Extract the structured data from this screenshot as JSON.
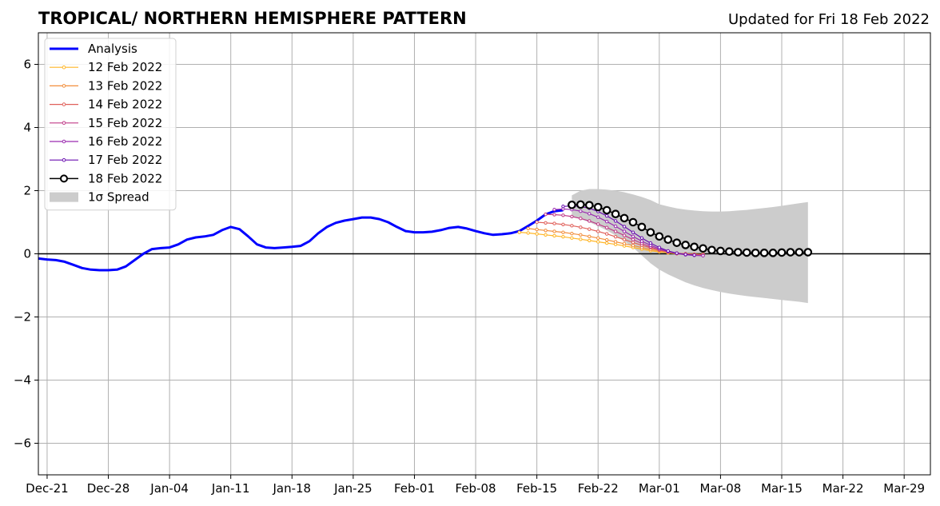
{
  "header": {
    "title": "TROPICAL/ NORTHERN HEMISPHERE PATTERN",
    "updated": "Updated for Fri 18 Feb 2022"
  },
  "chart_data": {
    "type": "line",
    "title": "TROPICAL/ NORTHERN HEMISPHERE PATTERN",
    "xlabel": "",
    "ylabel": "",
    "ylim": [
      -7,
      7
    ],
    "xlim": [
      "2021-12-20",
      "2022-04-01"
    ],
    "grid": true,
    "legend_position": "top-left",
    "x_ticks": [
      {
        "date": "2021-12-21",
        "label": "Dec-21"
      },
      {
        "date": "2021-12-28",
        "label": "Dec-28"
      },
      {
        "date": "2022-01-04",
        "label": "Jan-04"
      },
      {
        "date": "2022-01-11",
        "label": "Jan-11"
      },
      {
        "date": "2022-01-18",
        "label": "Jan-18"
      },
      {
        "date": "2022-01-25",
        "label": "Jan-25"
      },
      {
        "date": "2022-02-01",
        "label": "Feb-01"
      },
      {
        "date": "2022-02-08",
        "label": "Feb-08"
      },
      {
        "date": "2022-02-15",
        "label": "Feb-15"
      },
      {
        "date": "2022-02-22",
        "label": "Feb-22"
      },
      {
        "date": "2022-03-01",
        "label": "Mar-01"
      },
      {
        "date": "2022-03-08",
        "label": "Mar-08"
      },
      {
        "date": "2022-03-15",
        "label": "Mar-15"
      },
      {
        "date": "2022-03-22",
        "label": "Mar-22"
      },
      {
        "date": "2022-03-29",
        "label": "Mar-29"
      }
    ],
    "y_ticks": [
      {
        "value": 6,
        "label": "6"
      },
      {
        "value": 4,
        "label": "4"
      },
      {
        "value": 2,
        "label": "2"
      },
      {
        "value": 0,
        "label": "0"
      },
      {
        "value": -2,
        "label": "−2"
      },
      {
        "value": -4,
        "label": "−4"
      },
      {
        "value": -6,
        "label": "−6"
      }
    ],
    "analysis": {
      "name": "Analysis",
      "color": "#0000ff",
      "start_date": "2021-12-20",
      "values": [
        -0.15,
        -0.18,
        -0.2,
        -0.25,
        -0.35,
        -0.45,
        -0.5,
        -0.52,
        -0.52,
        -0.5,
        -0.4,
        -0.2,
        0.0,
        0.15,
        0.18,
        0.2,
        0.3,
        0.45,
        0.52,
        0.55,
        0.6,
        0.75,
        0.85,
        0.78,
        0.55,
        0.3,
        0.2,
        0.18,
        0.2,
        0.22,
        0.25,
        0.4,
        0.65,
        0.85,
        0.98,
        1.05,
        1.1,
        1.15,
        1.15,
        1.1,
        1.0,
        0.85,
        0.72,
        0.68,
        0.68,
        0.7,
        0.75,
        0.82,
        0.85,
        0.8,
        0.72,
        0.65,
        0.6,
        0.62,
        0.65,
        0.72,
        0.88,
        1.05,
        1.25,
        1.35,
        1.38
      ]
    },
    "forecasts": [
      {
        "name": "12 Feb 2022",
        "color": "#ffb627",
        "start_date": "2022-02-13",
        "values": [
          0.68,
          0.66,
          0.63,
          0.6,
          0.57,
          0.54,
          0.5,
          0.46,
          0.42,
          0.38,
          0.34,
          0.3,
          0.25,
          0.2,
          0.15,
          0.1,
          0.06,
          0.03,
          0.0,
          -0.02,
          -0.03,
          -0.03
        ]
      },
      {
        "name": "13 Feb 2022",
        "color": "#f28e3b",
        "start_date": "2022-02-14",
        "values": [
          0.8,
          0.77,
          0.74,
          0.71,
          0.68,
          0.64,
          0.6,
          0.55,
          0.5,
          0.44,
          0.38,
          0.32,
          0.26,
          0.2,
          0.14,
          0.09,
          0.05,
          0.02,
          0.0,
          -0.01,
          -0.02
        ]
      },
      {
        "name": "14 Feb 2022",
        "color": "#e0605a",
        "start_date": "2022-02-15",
        "values": [
          1.0,
          0.98,
          0.96,
          0.93,
          0.89,
          0.84,
          0.78,
          0.71,
          0.63,
          0.54,
          0.45,
          0.36,
          0.27,
          0.19,
          0.12,
          0.06,
          0.02,
          0.0,
          -0.02,
          -0.03
        ]
      },
      {
        "name": "15 Feb 2022",
        "color": "#c03b89",
        "start_date": "2022-02-16",
        "values": [
          1.25,
          1.24,
          1.22,
          1.18,
          1.12,
          1.04,
          0.94,
          0.83,
          0.71,
          0.58,
          0.45,
          0.33,
          0.22,
          0.13,
          0.06,
          0.01,
          -0.02,
          -0.04,
          -0.05
        ]
      },
      {
        "name": "16 Feb 2022",
        "color": "#9b2bb0",
        "start_date": "2022-02-17",
        "values": [
          1.4,
          1.42,
          1.4,
          1.35,
          1.27,
          1.16,
          1.02,
          0.87,
          0.71,
          0.55,
          0.4,
          0.27,
          0.16,
          0.07,
          0.01,
          -0.03,
          -0.05,
          -0.06
        ]
      },
      {
        "name": "17 Feb 2022",
        "color": "#6a0fb0",
        "start_date": "2022-02-18",
        "values": [
          1.5,
          1.52,
          1.5,
          1.44,
          1.34,
          1.2,
          1.04,
          0.86,
          0.68,
          0.5,
          0.34,
          0.2,
          0.09,
          0.02,
          -0.02,
          -0.04
        ]
      },
      {
        "name": "18 Feb 2022",
        "color": "#000000",
        "start_date": "2022-02-19",
        "values": [
          1.55,
          1.56,
          1.54,
          1.48,
          1.38,
          1.26,
          1.13,
          1.0,
          0.85,
          0.68,
          0.55,
          0.45,
          0.35,
          0.28,
          0.22,
          0.17,
          0.12,
          0.09,
          0.07,
          0.05,
          0.04,
          0.03,
          0.03,
          0.03,
          0.04,
          0.05,
          0.05,
          0.05
        ]
      }
    ],
    "spread": {
      "name": "1σ Spread",
      "color": "#cccccc",
      "start_date": "2022-02-19",
      "upper": [
        1.85,
        2.0,
        2.05,
        2.05,
        2.03,
        2.0,
        1.95,
        1.88,
        1.8,
        1.7,
        1.57,
        1.5,
        1.44,
        1.4,
        1.37,
        1.35,
        1.34,
        1.34,
        1.35,
        1.37,
        1.39,
        1.42,
        1.45,
        1.48,
        1.52,
        1.56,
        1.6,
        1.64
      ],
      "lower": [
        1.2,
        1.1,
        1.0,
        0.88,
        0.74,
        0.58,
        0.4,
        0.2,
        -0.05,
        -0.3,
        -0.5,
        -0.65,
        -0.78,
        -0.9,
        -1.0,
        -1.08,
        -1.15,
        -1.21,
        -1.26,
        -1.3,
        -1.34,
        -1.37,
        -1.4,
        -1.43,
        -1.46,
        -1.49,
        -1.52,
        -1.56
      ]
    }
  }
}
